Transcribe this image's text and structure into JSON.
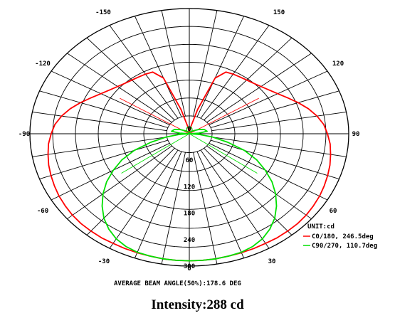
{
  "chart_data": {
    "type": "polar",
    "unit_label": "UNIT:cd",
    "angle_labels": [
      "-150",
      "150",
      "-120",
      "120",
      "-90",
      "90",
      "-60",
      "60",
      "-30",
      "30",
      "0"
    ],
    "radial_ticks": [
      0,
      60,
      120,
      180,
      240,
      300
    ],
    "radial_tick_labels": [
      "0",
      "60",
      "120",
      "180",
      "240",
      "300"
    ],
    "rmax": 300,
    "series": [
      {
        "name": "C0/180, 246.5deg",
        "color": "#ff0000",
        "points": [
          [
            -180,
            0
          ],
          [
            -175,
            6
          ],
          [
            -170,
            18
          ],
          [
            -165,
            60
          ],
          [
            -160,
            142
          ],
          [
            -155,
            163
          ],
          [
            -150,
            165
          ],
          [
            -145,
            166
          ],
          [
            -140,
            168
          ],
          [
            -135,
            171
          ],
          [
            -130,
            176
          ],
          [
            -125,
            183
          ],
          [
            -120,
            192
          ],
          [
            -115,
            204
          ],
          [
            -110,
            218
          ],
          [
            -105,
            232
          ],
          [
            -100,
            244
          ],
          [
            -95,
            254
          ],
          [
            -90,
            260
          ],
          [
            -85,
            266
          ],
          [
            -80,
            270
          ],
          [
            -75,
            274
          ],
          [
            -70,
            277
          ],
          [
            -65,
            280
          ],
          [
            -60,
            283
          ],
          [
            -55,
            285
          ],
          [
            -50,
            287
          ],
          [
            -45,
            288
          ],
          [
            -40,
            288
          ],
          [
            -35,
            288
          ],
          [
            -30,
            287
          ],
          [
            -25,
            287
          ],
          [
            -20,
            287
          ],
          [
            -15,
            287
          ],
          [
            -10,
            288
          ],
          [
            -5,
            288
          ],
          [
            0,
            288
          ],
          [
            5,
            288
          ],
          [
            10,
            288
          ],
          [
            15,
            287
          ],
          [
            20,
            287
          ],
          [
            25,
            287
          ],
          [
            30,
            287
          ],
          [
            35,
            288
          ],
          [
            40,
            288
          ],
          [
            45,
            288
          ],
          [
            50,
            287
          ],
          [
            55,
            285
          ],
          [
            60,
            283
          ],
          [
            65,
            280
          ],
          [
            70,
            277
          ],
          [
            75,
            274
          ],
          [
            80,
            270
          ],
          [
            85,
            266
          ],
          [
            90,
            260
          ],
          [
            95,
            254
          ],
          [
            100,
            244
          ],
          [
            105,
            232
          ],
          [
            110,
            218
          ],
          [
            115,
            204
          ],
          [
            120,
            192
          ],
          [
            125,
            183
          ],
          [
            130,
            176
          ],
          [
            135,
            171
          ],
          [
            140,
            168
          ],
          [
            145,
            166
          ],
          [
            150,
            165
          ],
          [
            155,
            163
          ],
          [
            160,
            142
          ],
          [
            165,
            60
          ],
          [
            170,
            18
          ],
          [
            175,
            6
          ],
          [
            180,
            0
          ]
        ],
        "beam_lines_deg": [
          -123,
          123
        ]
      },
      {
        "name": "C90/270, 110.7deg",
        "color": "#00e000",
        "points": [
          [
            -180,
            0
          ],
          [
            -170,
            3
          ],
          [
            -160,
            4
          ],
          [
            -150,
            6
          ],
          [
            -140,
            8
          ],
          [
            -130,
            12
          ],
          [
            -120,
            20
          ],
          [
            -110,
            30
          ],
          [
            -100,
            34
          ],
          [
            -95,
            18
          ],
          [
            -90,
            0
          ],
          [
            -85,
            20
          ],
          [
            -80,
            45
          ],
          [
            -75,
            75
          ],
          [
            -70,
            110
          ],
          [
            -65,
            140
          ],
          [
            -60,
            165
          ],
          [
            -55,
            190
          ],
          [
            -50,
            212
          ],
          [
            -45,
            232
          ],
          [
            -40,
            250
          ],
          [
            -35,
            264
          ],
          [
            -30,
            275
          ],
          [
            -25,
            282
          ],
          [
            -20,
            286
          ],
          [
            -15,
            287
          ],
          [
            -10,
            288
          ],
          [
            -5,
            288
          ],
          [
            0,
            288
          ],
          [
            5,
            288
          ],
          [
            10,
            288
          ],
          [
            15,
            287
          ],
          [
            20,
            286
          ],
          [
            25,
            282
          ],
          [
            30,
            275
          ],
          [
            35,
            264
          ],
          [
            40,
            250
          ],
          [
            45,
            232
          ],
          [
            50,
            212
          ],
          [
            55,
            190
          ],
          [
            60,
            165
          ],
          [
            65,
            140
          ],
          [
            70,
            110
          ],
          [
            75,
            75
          ],
          [
            80,
            45
          ],
          [
            85,
            20
          ],
          [
            90,
            0
          ],
          [
            95,
            18
          ],
          [
            100,
            34
          ],
          [
            110,
            30
          ],
          [
            120,
            20
          ],
          [
            130,
            12
          ],
          [
            140,
            8
          ],
          [
            150,
            6
          ],
          [
            160,
            4
          ],
          [
            170,
            3
          ],
          [
            180,
            0
          ]
        ],
        "beam_lines_deg": [
          -55,
          55
        ]
      }
    ]
  },
  "beam_angle_text": "AVERAGE BEAM ANGLE(50%):178.6 DEG",
  "intensity_text": "Intensity:288 cd"
}
